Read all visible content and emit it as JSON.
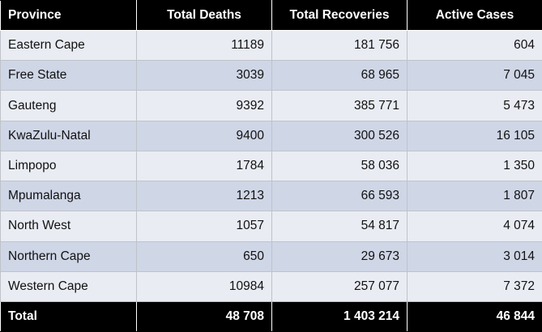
{
  "table": {
    "headers": [
      "Province",
      "Total Deaths",
      "Total Recoveries",
      "Active Cases"
    ],
    "rows": [
      [
        "Eastern Cape",
        "11189",
        "181 756",
        "604"
      ],
      [
        "Free State",
        "3039",
        "68 965",
        "7 045"
      ],
      [
        "Gauteng",
        "9392",
        "385 771",
        "5 473"
      ],
      [
        "KwaZulu-Natal",
        "9400",
        "300 526",
        "16 105"
      ],
      [
        "Limpopo",
        "1784",
        "58 036",
        "1 350"
      ],
      [
        "Mpumalanga",
        "1213",
        "66 593",
        "1 807"
      ],
      [
        "North West",
        "1057",
        "54 817",
        "4 074"
      ],
      [
        "Northern Cape",
        "650",
        "29 673",
        "3 014"
      ],
      [
        "Western Cape",
        "10984",
        "257 077",
        "7 372"
      ]
    ],
    "total": [
      "Total",
      "48 708",
      "1 403 214",
      "46 844"
    ]
  },
  "colors": {
    "header_bg": "#000000",
    "header_text": "#ffffff",
    "row_light": "#e9ecf3",
    "row_dark": "#cfd6e6",
    "border": "#bfc3c9"
  }
}
